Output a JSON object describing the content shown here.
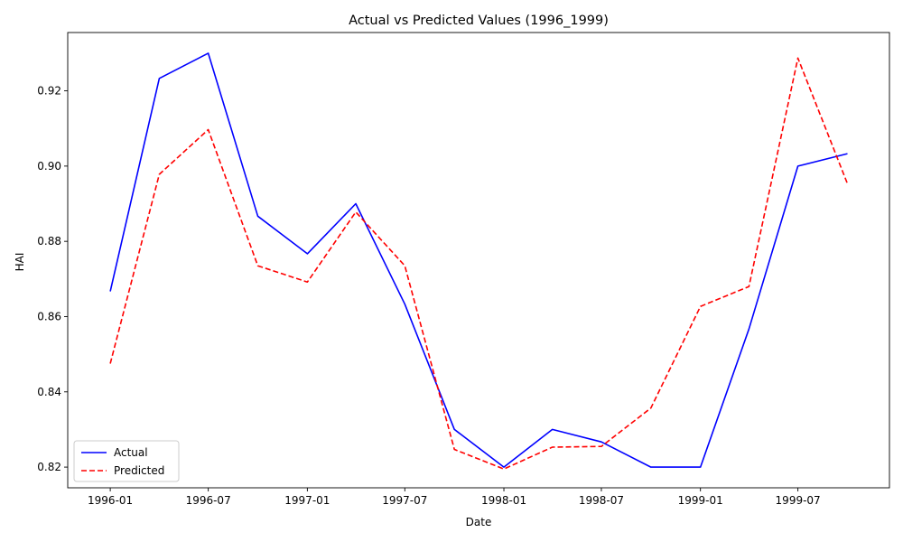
{
  "chart_data": {
    "type": "line",
    "title": "Actual vs Predicted Values (1996_1999)",
    "xlabel": "Date",
    "ylabel": "HAI",
    "x": [
      "1996-01-01",
      "1996-04-01",
      "1996-07-01",
      "1996-10-01",
      "1997-01-01",
      "1997-04-01",
      "1997-07-01",
      "1997-10-01",
      "1998-01-01",
      "1998-04-01",
      "1998-07-01",
      "1998-10-01",
      "1999-01-01",
      "1999-04-01",
      "1999-07-01",
      "1999-10-01"
    ],
    "series": [
      {
        "name": "Actual",
        "color": "#0000ff",
        "style": "solid",
        "values": [
          0.8667,
          0.9233,
          0.93,
          0.8867,
          0.8767,
          0.89,
          0.8633,
          0.83,
          0.82,
          0.83,
          0.8267,
          0.82,
          0.82,
          0.8567,
          0.9,
          0.9033
        ]
      },
      {
        "name": "Predicted",
        "color": "#ff0000",
        "style": "dashed",
        "values": [
          0.8475,
          0.8978,
          0.9097,
          0.8735,
          0.8692,
          0.8878,
          0.8735,
          0.8247,
          0.8195,
          0.8253,
          0.8255,
          0.8357,
          0.8627,
          0.868,
          0.9287,
          0.8953
        ]
      }
    ],
    "xticks": [
      "1996-01",
      "1996-07",
      "1997-01",
      "1997-07",
      "1998-01",
      "1998-07",
      "1999-01",
      "1999-07"
    ],
    "yticks": [
      "0.82",
      "0.84",
      "0.86",
      "0.88",
      "0.90",
      "0.92"
    ],
    "xlim": [
      "1995-10-14",
      "1999-12-18"
    ],
    "ylim": [
      0.8145,
      0.9355
    ],
    "grid": false,
    "legend_position": "lower-left"
  }
}
